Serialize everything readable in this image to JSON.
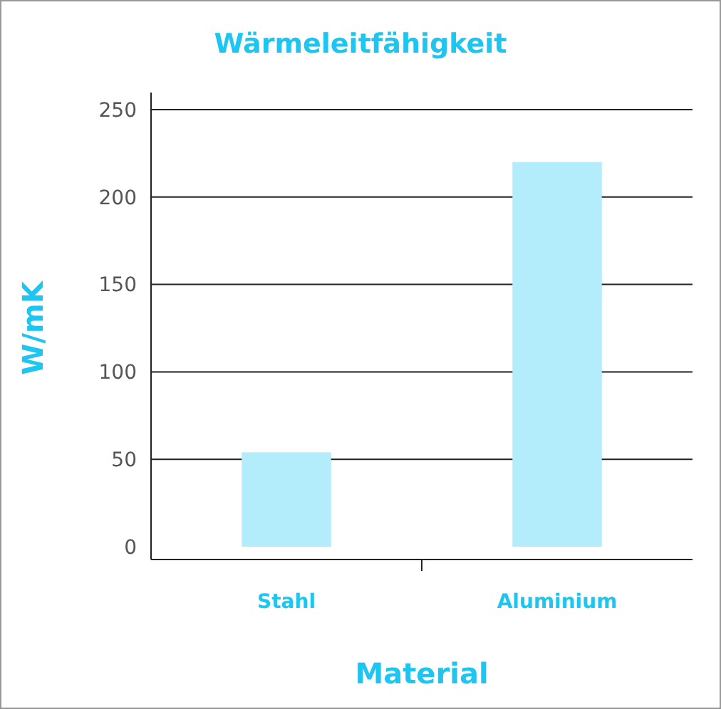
{
  "chart_data": {
    "type": "bar",
    "title": "Wärmeleitfähigkeit",
    "xlabel": "Material",
    "ylabel": "W/mK",
    "categories": [
      "Stahl",
      "Aluminium"
    ],
    "values": [
      54,
      220
    ],
    "color": "#b3ecfa",
    "ylim": [
      0,
      250
    ],
    "yticks": [
      0,
      50,
      100,
      150,
      200,
      250
    ],
    "grid": "y"
  }
}
